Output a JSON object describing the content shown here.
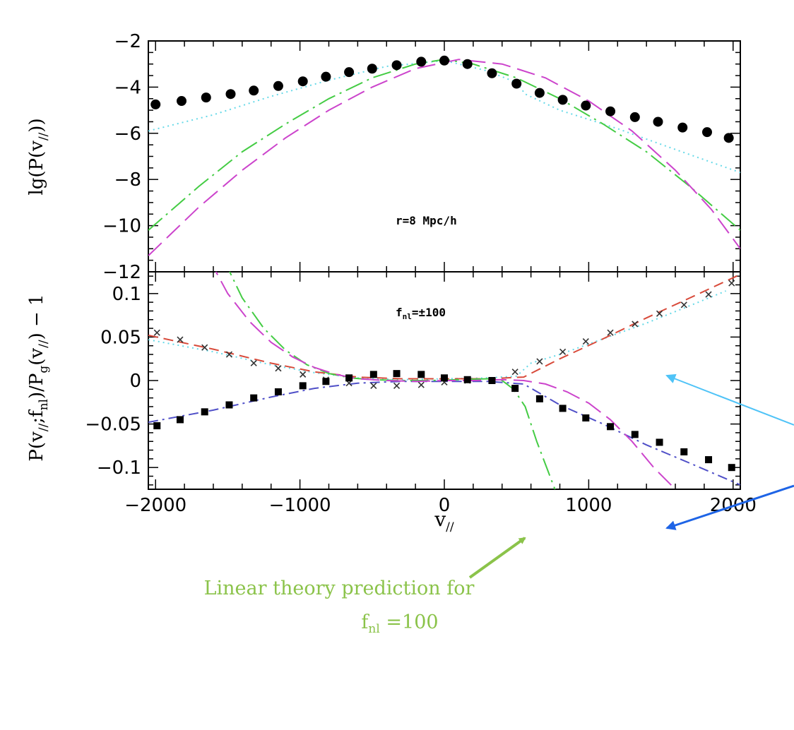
{
  "colors": {
    "frame": "#000000",
    "background": "#ffffff",
    "cyan": "#66d9e8",
    "green": "#44cc44",
    "magenta": "#cc44cc",
    "red": "#d84a3a",
    "blue": "#5050c8",
    "annotation_green": "#8bc34a",
    "arrow_light_blue": "#4fc3f7",
    "arrow_blue": "#1e64e6"
  },
  "chart_data": [
    {
      "type": "scatter",
      "panel": "top",
      "ylabel": "lg(P(v//))",
      "annotation": "r=8 Mpc/h",
      "xlim": [
        -2050,
        2050
      ],
      "ylim": [
        -12,
        -2
      ],
      "yticks": [
        -2,
        -4,
        -6,
        -8,
        -10,
        -12
      ],
      "ytick_labels": [
        "−2",
        "−4",
        "−6",
        "−8",
        "−10",
        "−12"
      ],
      "series": [
        {
          "marker": "circle",
          "x": [
            -2000,
            -1820,
            -1650,
            -1480,
            -1320,
            -1150,
            -980,
            -820,
            -660,
            -500,
            -330,
            -160,
            0,
            160,
            330,
            500,
            660,
            820,
            980,
            1150,
            1320,
            1480,
            1650,
            1820,
            1970
          ],
          "y": [
            -4.75,
            -4.6,
            -4.45,
            -4.3,
            -4.15,
            -3.95,
            -3.75,
            -3.55,
            -3.35,
            -3.2,
            -3.05,
            -2.9,
            -2.85,
            -3.0,
            -3.4,
            -3.85,
            -4.25,
            -4.55,
            -4.8,
            -5.05,
            -5.3,
            -5.5,
            -5.75,
            -5.95,
            -6.2
          ]
        },
        {
          "style": "dotted",
          "color": "#66d9e8",
          "x": [
            -2050,
            -1600,
            -1200,
            -800,
            -400,
            0,
            300,
            500,
            560,
            800,
            1200,
            1600,
            2050
          ],
          "y": [
            -5.9,
            -5.2,
            -4.4,
            -3.7,
            -3.1,
            -2.85,
            -3.3,
            -3.8,
            -4.3,
            -5.0,
            -5.8,
            -6.7,
            -7.7
          ]
        },
        {
          "style": "long-dash-dot",
          "color": "#44cc44",
          "x": [
            -2050,
            -1700,
            -1400,
            -1100,
            -800,
            -500,
            -200,
            0,
            200,
            500,
            800,
            1100,
            1400,
            1700,
            2050
          ],
          "y": [
            -10.2,
            -8.3,
            -6.8,
            -5.6,
            -4.5,
            -3.6,
            -3.0,
            -2.8,
            -3.0,
            -3.6,
            -4.5,
            -5.6,
            -6.8,
            -8.3,
            -10.2
          ]
        },
        {
          "style": "long-dash",
          "color": "#cc44cc",
          "x": [
            -2050,
            -1700,
            -1400,
            -1100,
            -800,
            -500,
            -200,
            100,
            400,
            700,
            1000,
            1300,
            1600,
            1850,
            2050
          ],
          "y": [
            -11.3,
            -9.2,
            -7.6,
            -6.2,
            -5.0,
            -4.0,
            -3.2,
            -2.8,
            -3.0,
            -3.6,
            -4.6,
            -5.9,
            -7.6,
            -9.3,
            -11.0
          ]
        }
      ]
    },
    {
      "type": "scatter",
      "panel": "bottom",
      "xlabel": "v//",
      "ylabel": "P(v//;fnl)/Pg(v//) − 1",
      "annotation": "fnl=±100",
      "xlim": [
        -2050,
        2050
      ],
      "ylim": [
        -0.125,
        0.125
      ],
      "xticks": [
        -2000,
        -1000,
        0,
        1000,
        2000
      ],
      "xtick_labels": [
        "−2000",
        "−1000",
        "0",
        "1000",
        "2000"
      ],
      "yticks": [
        0.1,
        0.05,
        0,
        -0.05,
        -0.1
      ],
      "ytick_labels": [
        "0.1",
        "0.05",
        "0",
        "−0.05",
        "−0.1"
      ],
      "series": [
        {
          "marker": "cross",
          "x": [
            -1990,
            -1830,
            -1660,
            -1490,
            -1320,
            -1150,
            -980,
            -820,
            -660,
            -490,
            -330,
            -160,
            0,
            160,
            330,
            490,
            660,
            820,
            980,
            1150,
            1320,
            1490,
            1660,
            1830,
            1990
          ],
          "y": [
            0.055,
            0.047,
            0.038,
            0.03,
            0.02,
            0.014,
            0.007,
            0.001,
            -0.003,
            -0.006,
            -0.006,
            -0.005,
            -0.002,
            0.0,
            0.0,
            0.01,
            0.022,
            0.033,
            0.045,
            0.055,
            0.065,
            0.077,
            0.087,
            0.099,
            0.112
          ]
        },
        {
          "marker": "square",
          "x": [
            -1990,
            -1830,
            -1660,
            -1490,
            -1320,
            -1150,
            -980,
            -820,
            -660,
            -490,
            -330,
            -160,
            0,
            160,
            330,
            490,
            660,
            820,
            980,
            1150,
            1320,
            1490,
            1660,
            1830,
            1990
          ],
          "y": [
            -0.052,
            -0.045,
            -0.036,
            -0.028,
            -0.02,
            -0.013,
            -0.006,
            -0.001,
            0.003,
            0.007,
            0.008,
            0.007,
            0.003,
            0.001,
            0.0,
            -0.009,
            -0.021,
            -0.032,
            -0.043,
            -0.053,
            -0.062,
            -0.071,
            -0.082,
            -0.091,
            -0.1
          ]
        },
        {
          "style": "dotted",
          "color": "#66d9e8",
          "x": [
            -2050,
            -1600,
            -1200,
            -900,
            -600,
            -300,
            0,
            300,
            500,
            600,
            800,
            1100,
            1400,
            1700,
            1950
          ],
          "y": [
            0.047,
            0.033,
            0.018,
            0.009,
            0.003,
            0.001,
            0.002,
            0.003,
            0.005,
            0.02,
            0.03,
            0.048,
            0.066,
            0.086,
            0.103
          ]
        },
        {
          "style": "dash",
          "color": "#d84a3a",
          "x": [
            -2050,
            -1600,
            -1200,
            -900,
            -600,
            -300,
            0,
            300,
            550,
            800,
            1100,
            1400,
            1700,
            2050
          ],
          "y": [
            0.052,
            0.036,
            0.02,
            0.01,
            0.004,
            0.002,
            0.002,
            0.002,
            0.004,
            0.025,
            0.048,
            0.072,
            0.095,
            0.122
          ]
        },
        {
          "style": "dash-dot",
          "color": "#5050c8",
          "x": [
            -2050,
            -1600,
            -1200,
            -900,
            -600,
            -300,
            0,
            300,
            550,
            800,
            1100,
            1400,
            1700,
            2050
          ],
          "y": [
            -0.048,
            -0.034,
            -0.019,
            -0.009,
            -0.003,
            -0.001,
            -0.001,
            -0.001,
            -0.004,
            -0.028,
            -0.05,
            -0.074,
            -0.095,
            -0.12
          ]
        },
        {
          "style": "long-dash-dot",
          "color": "#44cc44",
          "x": [
            -1530,
            -1400,
            -1250,
            -1100,
            -950,
            -800,
            -650,
            -500,
            -300,
            -100,
            100,
            300,
            400,
            480,
            560,
            640,
            720,
            800
          ],
          "y": [
            0.14,
            0.095,
            0.06,
            0.035,
            0.018,
            0.008,
            0.003,
            0.001,
            0.0,
            0.0,
            0.001,
            0.002,
            0.0,
            -0.01,
            -0.03,
            -0.07,
            -0.105,
            -0.14
          ]
        },
        {
          "style": "long-dash",
          "color": "#cc44cc",
          "x": [
            -1630,
            -1500,
            -1350,
            -1200,
            -1050,
            -900,
            -750,
            -600,
            -400,
            -200,
            0,
            200,
            400,
            550,
            700,
            850,
            1000,
            1150,
            1300,
            1450,
            1600,
            1750
          ],
          "y": [
            0.14,
            0.1,
            0.068,
            0.044,
            0.027,
            0.015,
            0.007,
            0.002,
            0.0,
            -0.001,
            0.0,
            0.0,
            0.001,
            0.0,
            -0.004,
            -0.013,
            -0.026,
            -0.045,
            -0.07,
            -0.1,
            -0.125,
            -0.14
          ]
        }
      ]
    }
  ],
  "annotations": {
    "linear_theory_line1": "Linear theory prediction for",
    "linear_theory_line2_f": "f",
    "linear_theory_line2_sub": "nl",
    "linear_theory_line2_rest": " =100"
  }
}
